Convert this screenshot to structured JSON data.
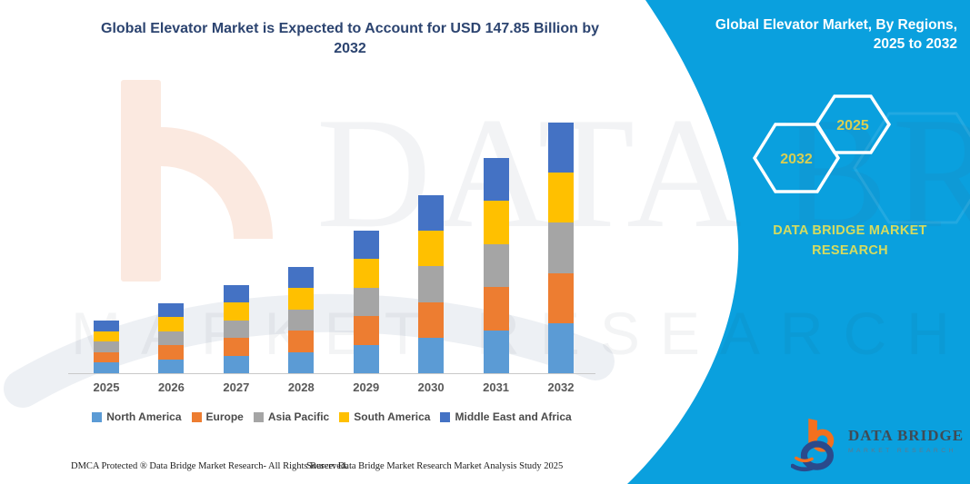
{
  "header": {
    "title_line1": "Global Elevator Market is Expected to Account for USD 147.85 Billion by",
    "title_line2": "2032"
  },
  "side_panel": {
    "heading_line1": "Global Elevator Market, By Regions,",
    "heading_line2": "2025 to 2032",
    "hexagons": [
      {
        "label": "2032"
      },
      {
        "label": "2025"
      }
    ],
    "brand_text": "DATA BRIDGE MARKET RESEARCH",
    "colors": {
      "background": "#0AA0DE",
      "hexagon_border": "#FFFFFF",
      "year_text": "#D9CE52",
      "brand_text": "#D5DB5F"
    }
  },
  "chart_data": {
    "type": "bar",
    "stacked": true,
    "title": "Global Elevator Market is Expected to Account for USD 147.85 Billion by 2032",
    "units": "USD Billion",
    "categories": [
      "2025",
      "2026",
      "2027",
      "2028",
      "2029",
      "2030",
      "2031",
      "2032"
    ],
    "series": [
      {
        "name": "North America",
        "color": "#5B9BD5",
        "values": [
          6.22,
          8.26,
          10.4,
          12.54,
          16.82,
          21.0,
          25.4,
          29.57
        ]
      },
      {
        "name": "Europe",
        "color": "#ED7D31",
        "values": [
          6.22,
          8.26,
          10.4,
          12.54,
          16.82,
          21.0,
          25.4,
          29.57
        ]
      },
      {
        "name": "Asia Pacific",
        "color": "#A5A5A5",
        "values": [
          6.22,
          8.26,
          10.4,
          12.54,
          16.82,
          21.0,
          25.4,
          29.57
        ]
      },
      {
        "name": "South America",
        "color": "#FFC000",
        "values": [
          6.22,
          8.26,
          10.4,
          12.54,
          16.82,
          21.0,
          25.4,
          29.57
        ]
      },
      {
        "name": "Middle East and Africa",
        "color": "#4472C4",
        "values": [
          6.22,
          8.26,
          10.4,
          12.54,
          16.82,
          21.0,
          25.4,
          29.57
        ]
      }
    ],
    "estimated_totals": [
      31.1,
      41.3,
      52.0,
      62.7,
      84.1,
      105.0,
      127.0,
      147.85
    ],
    "xlabel": "",
    "ylabel": "",
    "ylim": [
      0,
      148
    ],
    "grid": false,
    "legend_position": "bottom"
  },
  "watermark": {
    "line1": "DATA BRIDGE",
    "line2": "MARKET RESEARCH"
  },
  "logo": {
    "name": "DATA BRIDGE",
    "subtitle": "MARKET RESEARCH"
  },
  "footer": {
    "left": "DMCA Protected ® Data Bridge Market Research-  All Rights Reserved.",
    "source": "Source: Data Bridge Market Research  Market Analysis Study 2025"
  }
}
